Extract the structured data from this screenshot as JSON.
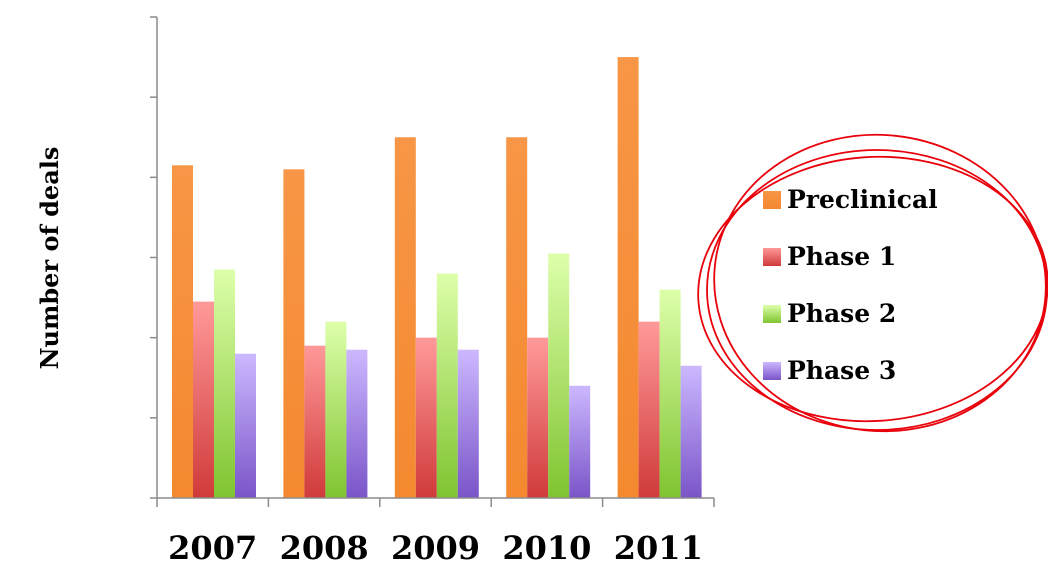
{
  "chart_data": {
    "type": "bar",
    "title": "",
    "xlabel": "",
    "ylabel": "Number of deals",
    "categories": [
      "2007",
      "2008",
      "2009",
      "2010",
      "2011"
    ],
    "ylim": [
      0,
      6
    ],
    "grid": false,
    "legend_position": "right",
    "series": [
      {
        "name": "Preclinical",
        "values": [
          4.15,
          4.1,
          4.5,
          4.5,
          5.5
        ]
      },
      {
        "name": "Phase 1",
        "values": [
          2.45,
          1.9,
          2.0,
          2.0,
          2.2
        ]
      },
      {
        "name": "Phase 2",
        "values": [
          2.85,
          2.2,
          2.8,
          3.05,
          2.6
        ]
      },
      {
        "name": "Phase 3",
        "values": [
          1.8,
          1.85,
          1.85,
          1.4,
          1.65
        ]
      }
    ]
  },
  "colors": {
    "preclinical_top": "#f79646",
    "preclinical_bottom": "#f4892f",
    "phase1_top": "#ff9999",
    "phase1_bottom": "#d03a3a",
    "phase2_top": "#ddffaa",
    "phase2_bottom": "#7fc430",
    "phase3_top": "#ccb8ff",
    "phase3_bottom": "#7a55c8",
    "axis": "#8c8c8c",
    "annotation_circle": "#e8000b"
  }
}
